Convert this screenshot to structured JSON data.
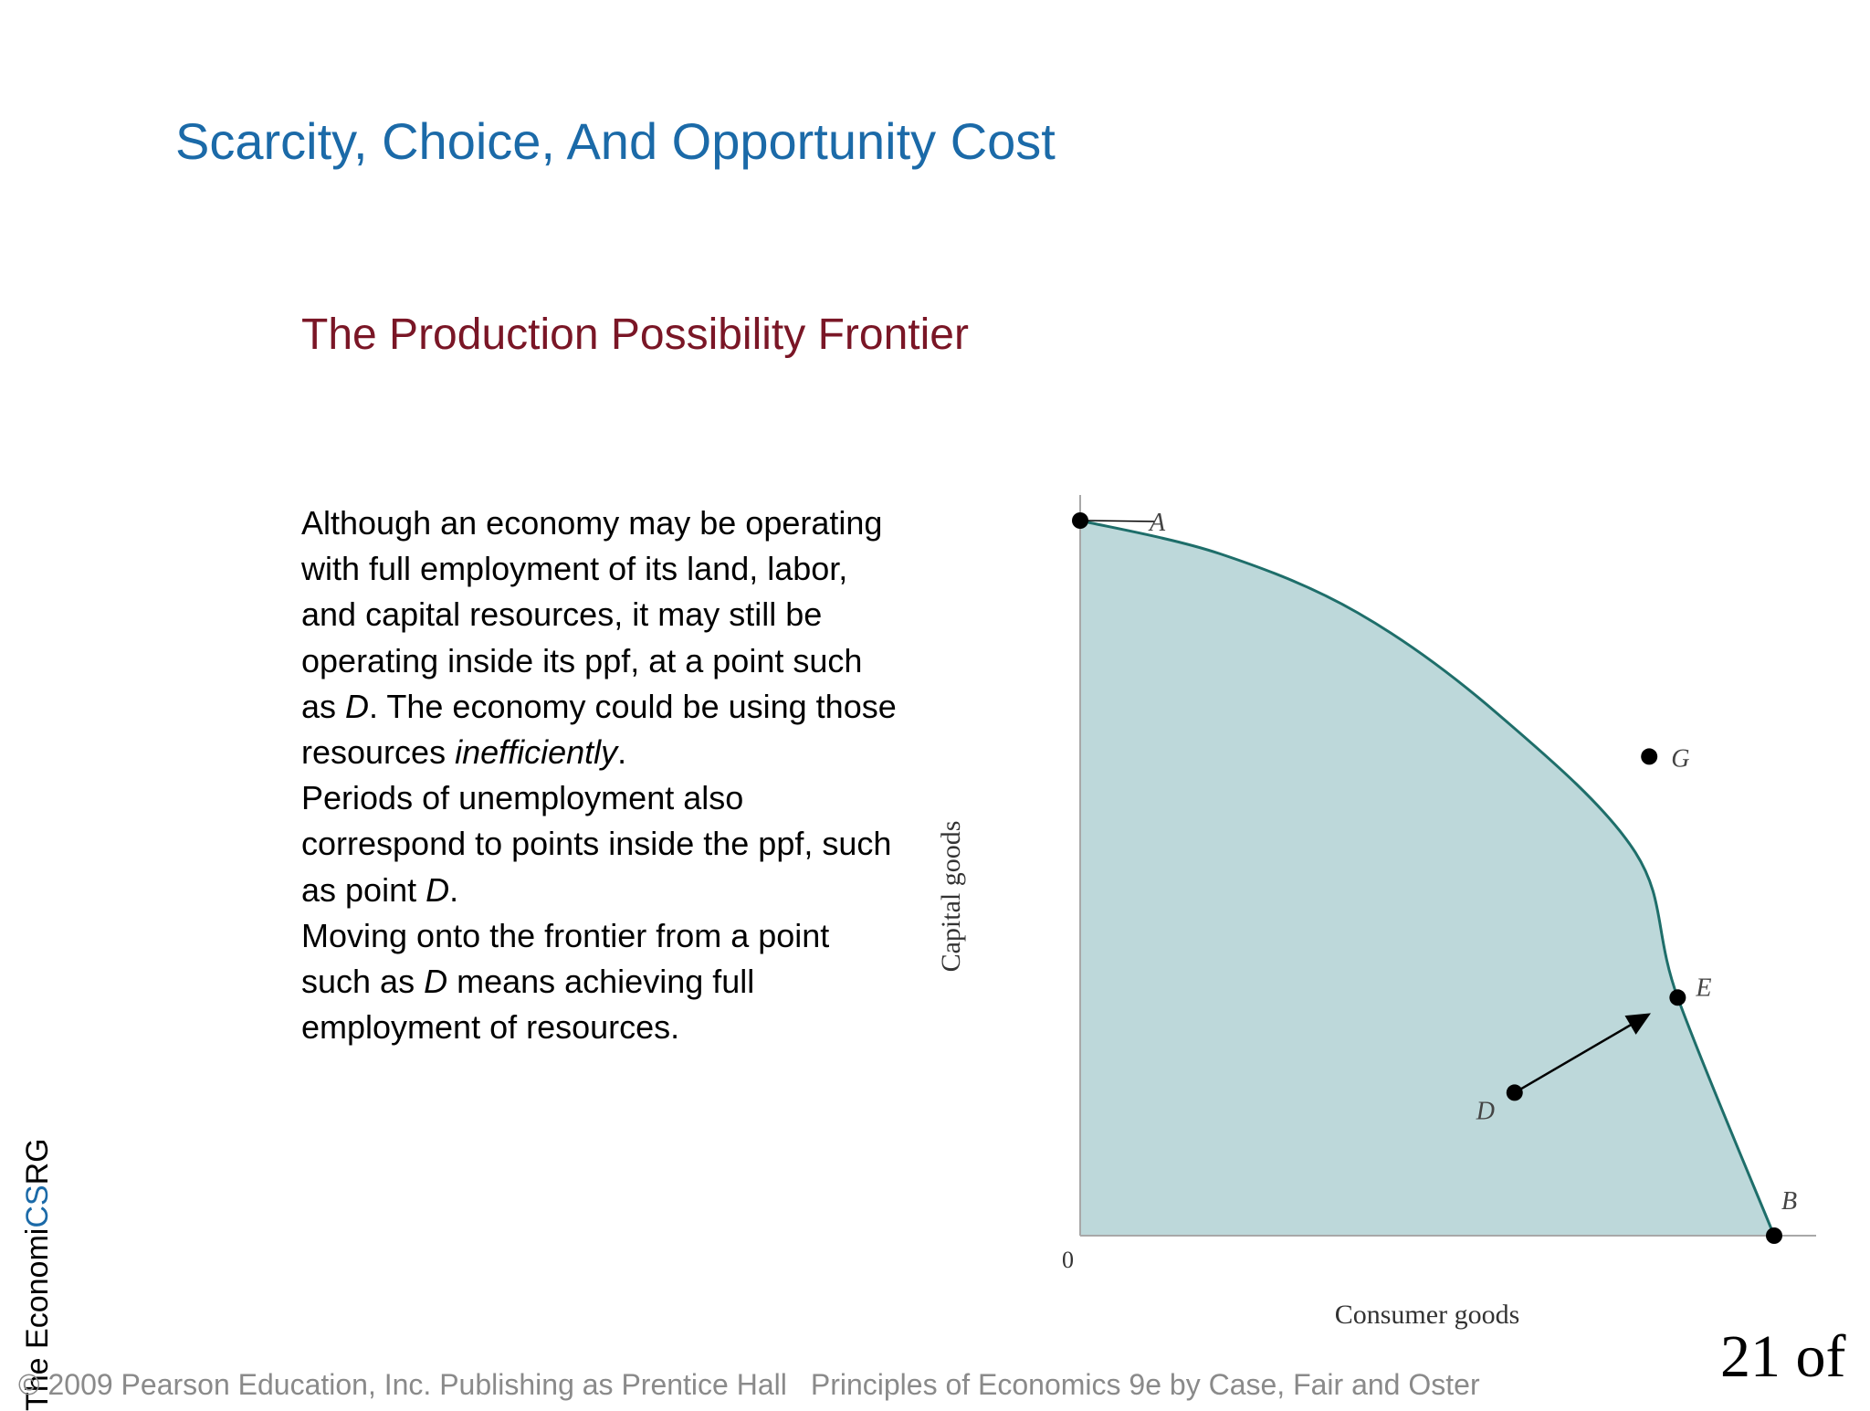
{
  "slide": {
    "title": "Scarcity, Choice, And Opportunity Cost",
    "subtitle": "The Production Possibility Frontier",
    "page_number": "21 of"
  },
  "body": {
    "para1_a": "Although an economy may be operating with full employment of its land, labor, and capital resources, it may still be operating inside its ppf, at a point such as ",
    "para1_d": "D",
    "para1_b": ". The economy could be using those resources ",
    "para1_em": "inefficiently",
    "para1_c": ".",
    "para2_a": "Periods of unemployment also correspond to points inside the ppf, such as point ",
    "para2_d": "D",
    "para2_b": ".",
    "para3_a": "Moving onto the frontier from a point such as ",
    "para3_d": "D",
    "para3_b": " means achieving full employment of resources."
  },
  "side_label": {
    "text_a": "The E",
    "text_b": "conom",
    "text_c": "i",
    "text_highlight": "CS",
    "text_d": "RG"
  },
  "footer": {
    "copyright": "© 2009 Pearson Education, Inc. Publishing as Prentice Hall",
    "book": "Principles of Economics 9e by Case, Fair and Oster"
  },
  "colors": {
    "title": "#1b6aa8",
    "subtitle": "#7a1626",
    "region_fill": "#bdd8da",
    "frontier": "#1e6e6a",
    "axis": "#a8a8a8"
  },
  "chart_data": {
    "type": "area",
    "xlabel": "Consumer goods",
    "ylabel": "Capital goods",
    "origin_label": "0",
    "xlim": [
      0,
      100
    ],
    "ylim": [
      0,
      100
    ],
    "frontier": [
      [
        0,
        100
      ],
      [
        20,
        95.4
      ],
      [
        40,
        87.1
      ],
      [
        60,
        73.1
      ],
      [
        80,
        53.6
      ],
      [
        86.1,
        33.3
      ],
      [
        100,
        0
      ]
    ],
    "points": [
      {
        "label": "A",
        "x": 0,
        "y": 100
      },
      {
        "label": "G",
        "x": 82,
        "y": 67
      },
      {
        "label": "E",
        "x": 86.1,
        "y": 33.3
      },
      {
        "label": "D",
        "x": 62.6,
        "y": 20
      },
      {
        "label": "B",
        "x": 100,
        "y": 0
      }
    ],
    "arrow": {
      "from": "D",
      "to": "E"
    },
    "grid": false
  }
}
